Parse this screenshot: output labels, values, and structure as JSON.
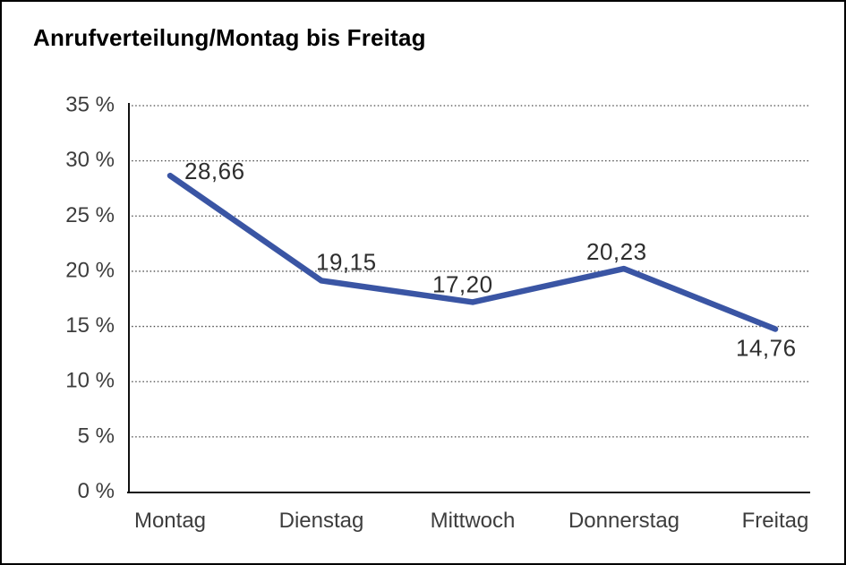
{
  "chart_data": {
    "type": "line",
    "title": "Anrufverteilung/Montag bis Freitag",
    "categories": [
      "Montag",
      "Dienstag",
      "Mittwoch",
      "Donnerstag",
      "Freitag"
    ],
    "values": [
      28.66,
      19.15,
      17.2,
      20.23,
      14.76
    ],
    "value_labels": [
      "28,66",
      "19,15",
      "17,20",
      "20,23",
      "14,76"
    ],
    "xlabel": "",
    "ylabel": "",
    "ylim": [
      0,
      35
    ],
    "y_tick_step": 5,
    "y_ticks": [
      {
        "value": 0,
        "label": "0 %"
      },
      {
        "value": 5,
        "label": "5 %"
      },
      {
        "value": 10,
        "label": "10 %"
      },
      {
        "value": 15,
        "label": "15 %"
      },
      {
        "value": 20,
        "label": "20 %"
      },
      {
        "value": 25,
        "label": "25 %"
      },
      {
        "value": 30,
        "label": "30 %"
      },
      {
        "value": 35,
        "label": "35 %"
      }
    ],
    "grid": "horizontal-dotted",
    "legend": "none",
    "line_color": "#3a55a4",
    "line_width": 6.5,
    "axis_color": "#111111",
    "text_color": "#3d3d3d",
    "background_color": "#ffffff",
    "border_color": "#000000"
  }
}
